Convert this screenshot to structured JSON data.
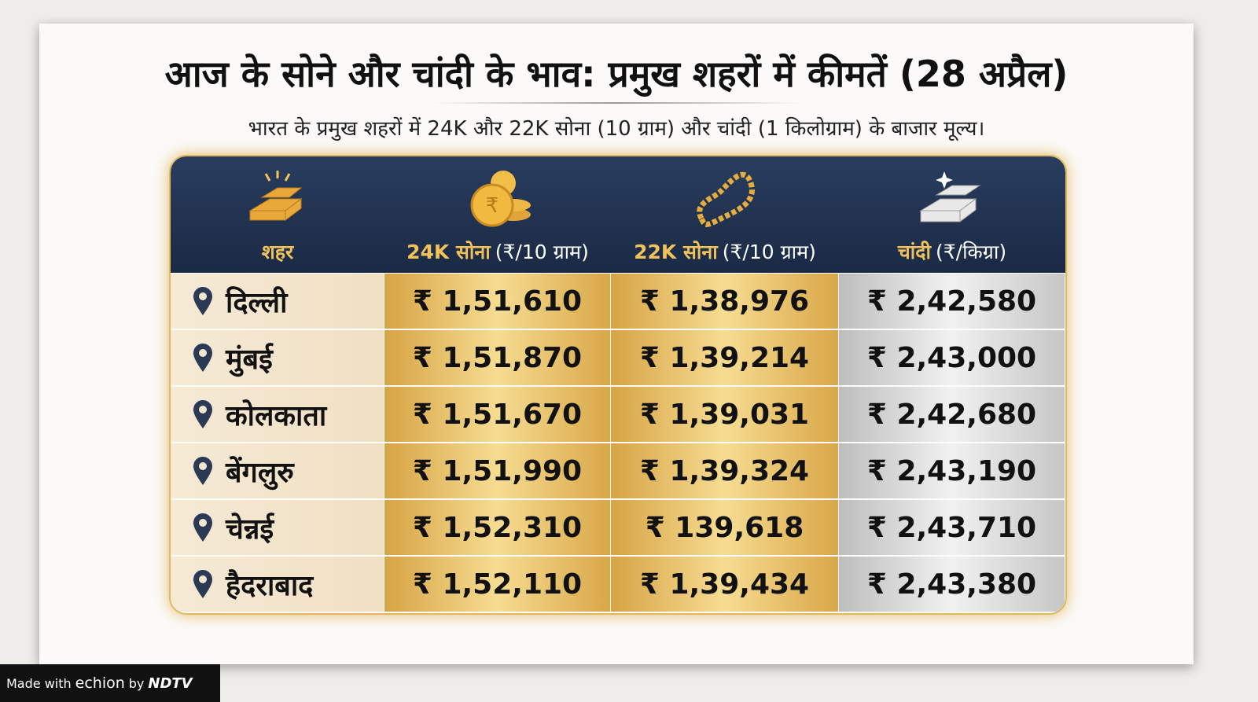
{
  "header": {
    "title": "आज के सोने और चांदी के भाव: प्रमुख शहरों में कीमतें (28 अप्रैल)",
    "subtitle": "भारत के प्रमुख शहरों में 24K और 22K सोना (10 ग्राम) और चांदी (1 किलोग्राम) के बाजार मूल्य।"
  },
  "table": {
    "columns": [
      {
        "name": "शहर"
      },
      {
        "name": "24K सोना",
        "unit": "(₹/10 ग्राम)"
      },
      {
        "name": "22K सोना",
        "unit": "(₹/10 ग्राम)"
      },
      {
        "name": "चांदी",
        "unit": "(₹/किग्रा)"
      }
    ],
    "rows": [
      [
        "दिल्ली",
        "₹ 1,51,610",
        "₹ 1,38,976",
        "₹ 2,42,580"
      ],
      [
        "मुंबई",
        "₹ 1,51,870",
        "₹ 1,39,214",
        "₹ 2,43,000"
      ],
      [
        "कोलकाता",
        "₹ 1,51,670",
        "₹ 1,39,031",
        "₹ 2,42,680"
      ],
      [
        "बेंगलुरु",
        "₹ 1,51,990",
        "₹ 1,39,324",
        "₹ 2,43,190"
      ],
      [
        "चेन्नई",
        "₹ 1,52,310",
        "₹ 139,618",
        "₹ 2,43,710"
      ],
      [
        "हैदराबाद",
        "₹ 1,52,110",
        "₹ 1,39,434",
        "₹ 2,43,380"
      ]
    ]
  },
  "footer": {
    "made_with": "Made with",
    "brand": "echion",
    "by": "by",
    "publisher": "NDTV"
  }
}
